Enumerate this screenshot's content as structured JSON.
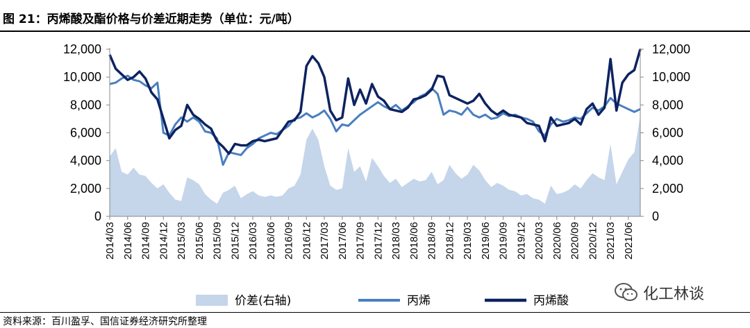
{
  "header": {
    "title": "图 21：丙烯酸及酯价格与价差近期走势（单位：元/吨）"
  },
  "footer": {
    "source": "资料来源：百川盈孚、国信证券经济研究所整理"
  },
  "watermark": {
    "text": "化工林谈",
    "icon": "wechat-icon"
  },
  "chart_data": {
    "type": "line",
    "title": "",
    "left_axis": {
      "min": 0,
      "max": 12000,
      "ticks": [
        "0",
        "2,000",
        "4,000",
        "6,000",
        "8,000",
        "10,000",
        "12,000"
      ]
    },
    "right_axis": {
      "min": 0,
      "max": 12000,
      "ticks": [
        "0",
        "2,000",
        "4,000",
        "6,000",
        "8,000",
        "10,000",
        "12,000"
      ]
    },
    "x_tick_labels": [
      "2014/03",
      "2014/06",
      "2014/09",
      "2014/12",
      "2015/03",
      "2015/06",
      "2015/09",
      "2015/12",
      "2016/03",
      "2016/06",
      "2016/09",
      "2016/12",
      "2017/03",
      "2017/06",
      "2017/09",
      "2017/12",
      "2018/03",
      "2018/06",
      "2018/09",
      "2018/12",
      "2019/03",
      "2019/06",
      "2019/09",
      "2019/12",
      "2020/03",
      "2020/06",
      "2020/09",
      "2020/12",
      "2021/03",
      "2021/06"
    ],
    "x_start": "2014/03",
    "x_end": "2021/08",
    "grid": false,
    "legend_position": "bottom",
    "colors": {
      "spread": "#c5d5ea",
      "propylene": "#4a7ebf",
      "acrylic_acid": "#0d2260"
    },
    "series": [
      {
        "name": "价差(右轴)",
        "kind": "area",
        "axis": "right",
        "points": [
          [
            "2014/03",
            4300
          ],
          [
            "2014/04",
            4900
          ],
          [
            "2014/05",
            3200
          ],
          [
            "2014/06",
            3000
          ],
          [
            "2014/07",
            3500
          ],
          [
            "2014/08",
            3000
          ],
          [
            "2014/09",
            2900
          ],
          [
            "2014/10",
            2400
          ],
          [
            "2014/11",
            2000
          ],
          [
            "2014/12",
            2300
          ],
          [
            "2015/01",
            1700
          ],
          [
            "2015/02",
            1200
          ],
          [
            "2015/03",
            1100
          ],
          [
            "2015/04",
            2800
          ],
          [
            "2015/05",
            2600
          ],
          [
            "2015/06",
            2300
          ],
          [
            "2015/07",
            1600
          ],
          [
            "2015/08",
            1200
          ],
          [
            "2015/09",
            900
          ],
          [
            "2015/10",
            1700
          ],
          [
            "2015/11",
            1900
          ],
          [
            "2015/12",
            2200
          ],
          [
            "2016/01",
            1300
          ],
          [
            "2016/02",
            1600
          ],
          [
            "2016/03",
            1800
          ],
          [
            "2016/04",
            1500
          ],
          [
            "2016/05",
            1400
          ],
          [
            "2016/06",
            1500
          ],
          [
            "2016/07",
            1400
          ],
          [
            "2016/08",
            1500
          ],
          [
            "2016/09",
            2000
          ],
          [
            "2016/10",
            2200
          ],
          [
            "2016/11",
            3000
          ],
          [
            "2016/12",
            5500
          ],
          [
            "2017/01",
            6300
          ],
          [
            "2017/02",
            5500
          ],
          [
            "2017/03",
            3600
          ],
          [
            "2017/04",
            2200
          ],
          [
            "2017/05",
            1900
          ],
          [
            "2017/06",
            2000
          ],
          [
            "2017/07",
            4900
          ],
          [
            "2017/08",
            3200
          ],
          [
            "2017/09",
            3600
          ],
          [
            "2017/10",
            2500
          ],
          [
            "2017/11",
            4200
          ],
          [
            "2017/12",
            3600
          ],
          [
            "2018/01",
            2900
          ],
          [
            "2018/02",
            2400
          ],
          [
            "2018/03",
            2700
          ],
          [
            "2018/04",
            2100
          ],
          [
            "2018/05",
            2400
          ],
          [
            "2018/06",
            2700
          ],
          [
            "2018/07",
            2500
          ],
          [
            "2018/08",
            2600
          ],
          [
            "2018/09",
            3200
          ],
          [
            "2018/10",
            2300
          ],
          [
            "2018/11",
            2600
          ],
          [
            "2018/12",
            3700
          ],
          [
            "2019/01",
            3100
          ],
          [
            "2019/02",
            2700
          ],
          [
            "2019/03",
            3000
          ],
          [
            "2019/04",
            3700
          ],
          [
            "2019/05",
            3300
          ],
          [
            "2019/06",
            2600
          ],
          [
            "2019/07",
            2100
          ],
          [
            "2019/08",
            2400
          ],
          [
            "2019/09",
            2200
          ],
          [
            "2019/10",
            1900
          ],
          [
            "2019/11",
            1800
          ],
          [
            "2019/12",
            1500
          ],
          [
            "2020/01",
            1600
          ],
          [
            "2020/02",
            1300
          ],
          [
            "2020/03",
            1200
          ],
          [
            "2020/04",
            900
          ],
          [
            "2020/05",
            2200
          ],
          [
            "2020/06",
            1600
          ],
          [
            "2020/07",
            1700
          ],
          [
            "2020/08",
            1900
          ],
          [
            "2020/09",
            2300
          ],
          [
            "2020/10",
            2000
          ],
          [
            "2020/11",
            2600
          ],
          [
            "2020/12",
            3100
          ],
          [
            "2021/01",
            2800
          ],
          [
            "2021/02",
            2600
          ],
          [
            "2021/03",
            5200
          ],
          [
            "2021/04",
            2300
          ],
          [
            "2021/05",
            3200
          ],
          [
            "2021/06",
            4100
          ],
          [
            "2021/07",
            4600
          ],
          [
            "2021/08",
            7200
          ]
        ]
      },
      {
        "name": "丙烯",
        "kind": "line",
        "axis": "left",
        "points": [
          [
            "2014/03",
            9500
          ],
          [
            "2014/04",
            9600
          ],
          [
            "2014/05",
            9900
          ],
          [
            "2014/06",
            10100
          ],
          [
            "2014/07",
            9800
          ],
          [
            "2014/08",
            9700
          ],
          [
            "2014/09",
            9400
          ],
          [
            "2014/10",
            9200
          ],
          [
            "2014/11",
            9600
          ],
          [
            "2014/12",
            6000
          ],
          [
            "2015/01",
            5800
          ],
          [
            "2015/02",
            6600
          ],
          [
            "2015/03",
            7100
          ],
          [
            "2015/04",
            6800
          ],
          [
            "2015/05",
            7100
          ],
          [
            "2015/06",
            6800
          ],
          [
            "2015/07",
            6100
          ],
          [
            "2015/08",
            6000
          ],
          [
            "2015/09",
            5600
          ],
          [
            "2015/10",
            3700
          ],
          [
            "2015/11",
            4600
          ],
          [
            "2015/12",
            4500
          ],
          [
            "2016/01",
            4400
          ],
          [
            "2016/02",
            4900
          ],
          [
            "2016/03",
            5200
          ],
          [
            "2016/04",
            5600
          ],
          [
            "2016/05",
            5800
          ],
          [
            "2016/06",
            6000
          ],
          [
            "2016/07",
            5900
          ],
          [
            "2016/08",
            6200
          ],
          [
            "2016/09",
            6500
          ],
          [
            "2016/10",
            7000
          ],
          [
            "2016/11",
            7100
          ],
          [
            "2016/12",
            7400
          ],
          [
            "2017/01",
            7100
          ],
          [
            "2017/02",
            7300
          ],
          [
            "2017/03",
            7600
          ],
          [
            "2017/04",
            7000
          ],
          [
            "2017/05",
            6100
          ],
          [
            "2017/06",
            6600
          ],
          [
            "2017/07",
            6500
          ],
          [
            "2017/08",
            6900
          ],
          [
            "2017/09",
            7300
          ],
          [
            "2017/10",
            7600
          ],
          [
            "2017/11",
            7900
          ],
          [
            "2017/12",
            8200
          ],
          [
            "2018/01",
            7900
          ],
          [
            "2018/02",
            7700
          ],
          [
            "2018/03",
            8000
          ],
          [
            "2018/04",
            7600
          ],
          [
            "2018/05",
            7900
          ],
          [
            "2018/06",
            8200
          ],
          [
            "2018/07",
            8600
          ],
          [
            "2018/08",
            8800
          ],
          [
            "2018/09",
            9200
          ],
          [
            "2018/10",
            8800
          ],
          [
            "2018/11",
            7300
          ],
          [
            "2018/12",
            7600
          ],
          [
            "2019/01",
            7500
          ],
          [
            "2019/02",
            7300
          ],
          [
            "2019/03",
            7800
          ],
          [
            "2019/04",
            7300
          ],
          [
            "2019/05",
            7100
          ],
          [
            "2019/06",
            7300
          ],
          [
            "2019/07",
            7000
          ],
          [
            "2019/08",
            7100
          ],
          [
            "2019/09",
            7400
          ],
          [
            "2019/10",
            7200
          ],
          [
            "2019/11",
            7300
          ],
          [
            "2019/12",
            7100
          ],
          [
            "2020/01",
            7000
          ],
          [
            "2020/02",
            6800
          ],
          [
            "2020/03",
            6100
          ],
          [
            "2020/04",
            5800
          ],
          [
            "2020/05",
            6600
          ],
          [
            "2020/06",
            7000
          ],
          [
            "2020/07",
            6800
          ],
          [
            "2020/08",
            6900
          ],
          [
            "2020/09",
            7100
          ],
          [
            "2020/10",
            7000
          ],
          [
            "2020/11",
            7400
          ],
          [
            "2020/12",
            7800
          ],
          [
            "2021/01",
            7600
          ],
          [
            "2021/02",
            7900
          ],
          [
            "2021/03",
            8500
          ],
          [
            "2021/04",
            8100
          ],
          [
            "2021/05",
            7900
          ],
          [
            "2021/06",
            7700
          ],
          [
            "2021/07",
            7500
          ],
          [
            "2021/08",
            7700
          ]
        ]
      },
      {
        "name": "丙烯酸",
        "kind": "line",
        "axis": "left",
        "points": [
          [
            "2014/03",
            11600
          ],
          [
            "2014/04",
            10600
          ],
          [
            "2014/05",
            10200
          ],
          [
            "2014/06",
            9800
          ],
          [
            "2014/07",
            10000
          ],
          [
            "2014/08",
            10400
          ],
          [
            "2014/09",
            9900
          ],
          [
            "2014/10",
            8900
          ],
          [
            "2014/11",
            8400
          ],
          [
            "2014/12",
            7000
          ],
          [
            "2015/01",
            5600
          ],
          [
            "2015/02",
            6200
          ],
          [
            "2015/03",
            6500
          ],
          [
            "2015/04",
            8000
          ],
          [
            "2015/05",
            7300
          ],
          [
            "2015/06",
            7000
          ],
          [
            "2015/07",
            6600
          ],
          [
            "2015/08",
            6300
          ],
          [
            "2015/09",
            5400
          ],
          [
            "2015/10",
            5000
          ],
          [
            "2015/11",
            4500
          ],
          [
            "2015/12",
            5200
          ],
          [
            "2016/01",
            5100
          ],
          [
            "2016/02",
            5100
          ],
          [
            "2016/03",
            5400
          ],
          [
            "2016/04",
            5500
          ],
          [
            "2016/05",
            5400
          ],
          [
            "2016/06",
            5500
          ],
          [
            "2016/07",
            5600
          ],
          [
            "2016/08",
            6200
          ],
          [
            "2016/09",
            6800
          ],
          [
            "2016/10",
            6900
          ],
          [
            "2016/11",
            7500
          ],
          [
            "2016/12",
            10800
          ],
          [
            "2017/01",
            11500
          ],
          [
            "2017/02",
            11000
          ],
          [
            "2017/03",
            10000
          ],
          [
            "2017/04",
            7600
          ],
          [
            "2017/05",
            6900
          ],
          [
            "2017/06",
            7100
          ],
          [
            "2017/07",
            9900
          ],
          [
            "2017/08",
            8000
          ],
          [
            "2017/09",
            9100
          ],
          [
            "2017/10",
            8100
          ],
          [
            "2017/11",
            9500
          ],
          [
            "2017/12",
            8600
          ],
          [
            "2018/01",
            8300
          ],
          [
            "2018/02",
            7700
          ],
          [
            "2018/03",
            7600
          ],
          [
            "2018/04",
            7500
          ],
          [
            "2018/05",
            7800
          ],
          [
            "2018/06",
            8400
          ],
          [
            "2018/07",
            8500
          ],
          [
            "2018/08",
            8700
          ],
          [
            "2018/09",
            9100
          ],
          [
            "2018/10",
            10100
          ],
          [
            "2018/11",
            10000
          ],
          [
            "2018/12",
            8700
          ],
          [
            "2019/01",
            8500
          ],
          [
            "2019/02",
            8300
          ],
          [
            "2019/03",
            8100
          ],
          [
            "2019/04",
            8300
          ],
          [
            "2019/05",
            8800
          ],
          [
            "2019/06",
            8100
          ],
          [
            "2019/07",
            7600
          ],
          [
            "2019/08",
            7300
          ],
          [
            "2019/09",
            7600
          ],
          [
            "2019/10",
            7300
          ],
          [
            "2019/11",
            7200
          ],
          [
            "2019/12",
            7100
          ],
          [
            "2020/01",
            6700
          ],
          [
            "2020/02",
            6600
          ],
          [
            "2020/03",
            6500
          ],
          [
            "2020/04",
            5400
          ],
          [
            "2020/05",
            7100
          ],
          [
            "2020/06",
            6500
          ],
          [
            "2020/07",
            6600
          ],
          [
            "2020/08",
            6700
          ],
          [
            "2020/09",
            7000
          ],
          [
            "2020/10",
            6600
          ],
          [
            "2020/11",
            7700
          ],
          [
            "2020/12",
            8100
          ],
          [
            "2021/01",
            7300
          ],
          [
            "2021/02",
            7800
          ],
          [
            "2021/03",
            11300
          ],
          [
            "2021/04",
            7600
          ],
          [
            "2021/05",
            9600
          ],
          [
            "2021/06",
            10200
          ],
          [
            "2021/07",
            10500
          ],
          [
            "2021/08",
            12000
          ]
        ]
      }
    ]
  }
}
